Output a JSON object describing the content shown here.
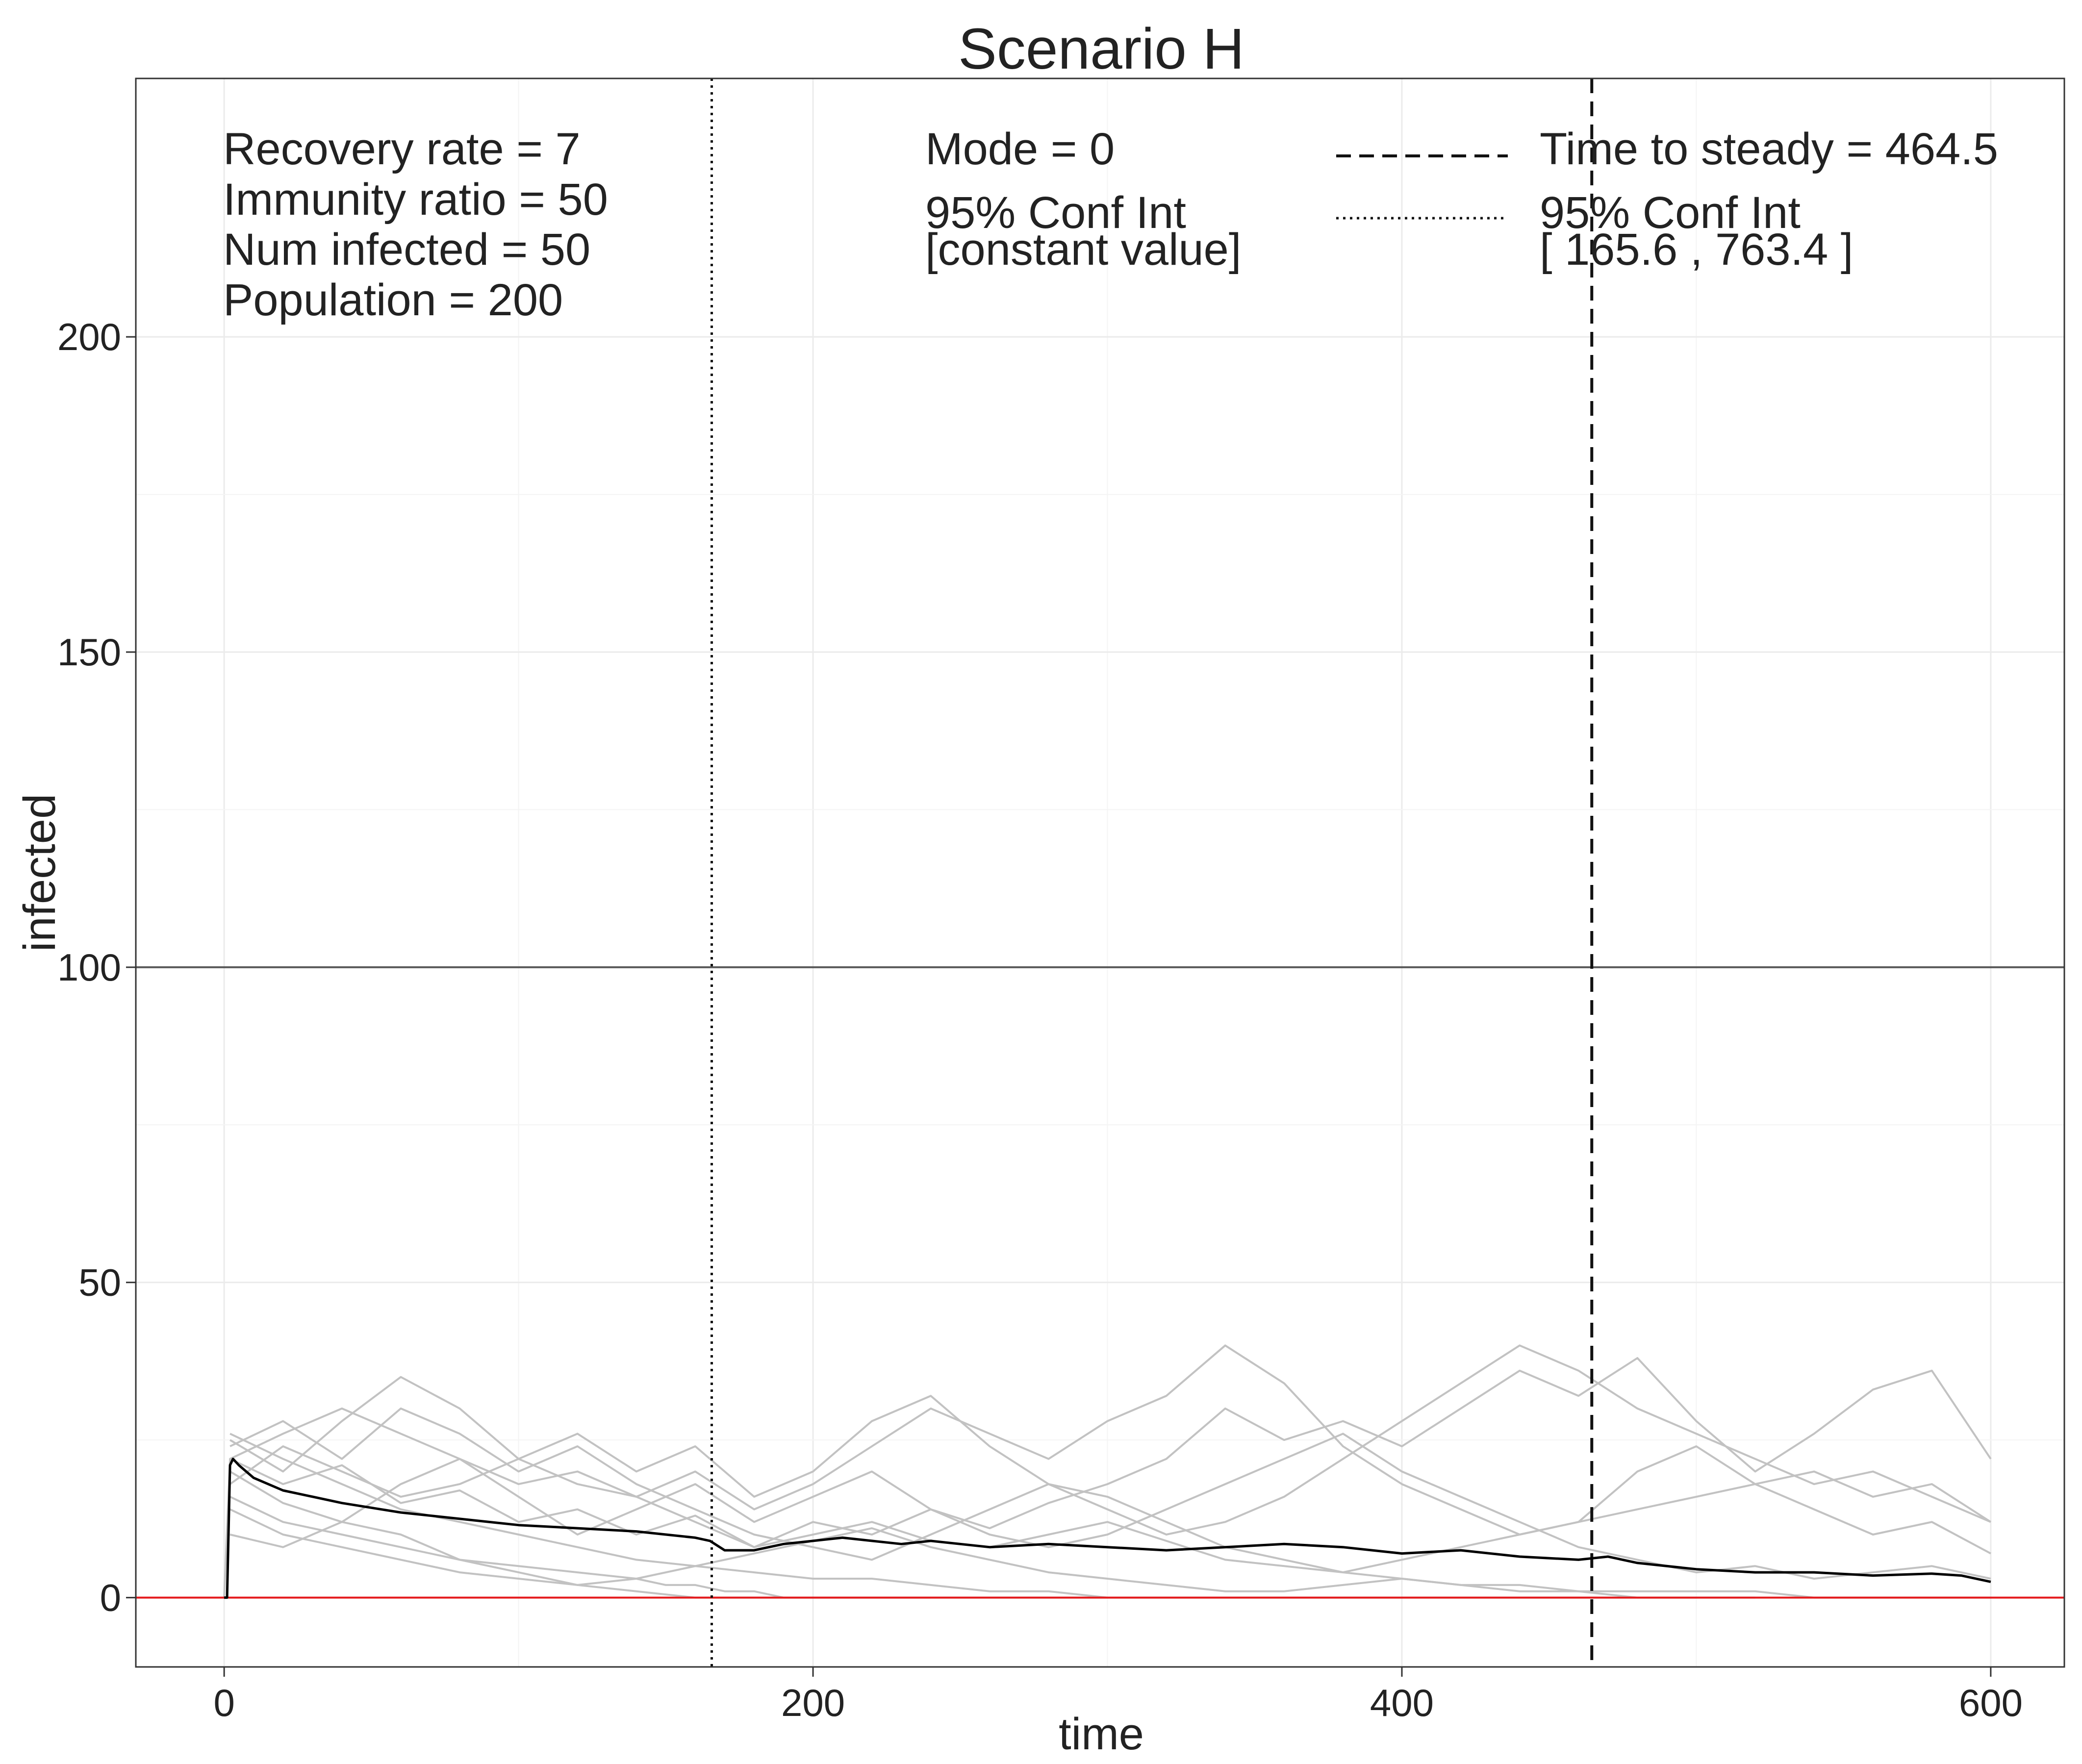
{
  "chart_data": {
    "type": "line",
    "title": "Scenario H",
    "xlabel": "time",
    "ylabel": "infected",
    "xlim": [
      -30,
      625
    ],
    "ylim": [
      -11,
      241
    ],
    "xticks": [
      0,
      200,
      400,
      600
    ],
    "yticks": [
      0,
      50,
      100,
      150,
      200
    ],
    "x_tick_labels": [
      "0",
      "200",
      "400",
      "600"
    ],
    "y_tick_labels": [
      "0",
      "50",
      "100",
      "150",
      "200"
    ],
    "grid": true,
    "reference_lines": {
      "population_half": {
        "y": 100,
        "color": "#595959"
      },
      "zero": {
        "y": 0,
        "color": "#e41a1c"
      },
      "time_to_steady": {
        "x": 464.5,
        "style": "dashed"
      },
      "ci_lower": {
        "x": 165.6,
        "style": "dotted"
      },
      "ci_upper": {
        "x": 763.4,
        "style": "dotted"
      }
    },
    "annotations": {
      "params": [
        "Recovery rate = 7",
        "Immunity ratio = 50",
        "Num infected = 50",
        "Population = 200"
      ],
      "mode_label": "Mode = 0",
      "mode_ci_label": "95% Conf Int",
      "mode_ci_value": "[constant value]",
      "steady_label": "Time to steady = 464.5",
      "steady_ci_label": "95% Conf Int",
      "steady_ci_value": "[ 165.6 , 763.4 ]"
    },
    "mean_series": {
      "color": "#000000",
      "x": [
        0,
        1,
        2,
        3,
        5,
        10,
        20,
        40,
        60,
        80,
        100,
        120,
        140,
        150,
        160,
        165,
        170,
        180,
        190,
        200,
        210,
        220,
        230,
        240,
        260,
        280,
        300,
        320,
        340,
        360,
        380,
        400,
        420,
        440,
        460,
        470,
        480,
        500,
        520,
        540,
        560,
        580,
        590,
        600
      ],
      "y": [
        0,
        0,
        21,
        22,
        21,
        19,
        17,
        15,
        13.5,
        12.5,
        11.5,
        11,
        10.5,
        10,
        9.5,
        9,
        7.5,
        7.5,
        8.5,
        9,
        9.5,
        9,
        8.5,
        9,
        8,
        8.5,
        8,
        7.5,
        8,
        8.5,
        8,
        7,
        7.5,
        6.5,
        6,
        6.5,
        5.5,
        4.5,
        4,
        4,
        3.5,
        3.8,
        3.5,
        2.5
      ]
    },
    "series": [
      {
        "x": [
          0,
          2,
          20,
          40,
          60,
          80,
          100,
          120,
          140,
          160,
          180,
          200,
          220,
          240,
          260,
          280,
          300,
          320,
          340,
          360,
          380,
          400,
          420,
          440,
          460,
          480,
          500,
          520,
          540,
          560,
          580,
          600
        ],
        "y": [
          0,
          22,
          18,
          21,
          15,
          17,
          12,
          14,
          10,
          13,
          8,
          12,
          10,
          14,
          11,
          15,
          18,
          22,
          30,
          25,
          28,
          24,
          30,
          36,
          32,
          38,
          28,
          20,
          26,
          33,
          36,
          22
        ]
      },
      {
        "x": [
          2,
          20,
          40,
          60,
          80,
          100,
          120,
          140,
          160,
          180,
          200,
          220,
          240,
          260,
          280,
          300,
          320,
          340,
          360,
          380,
          400,
          420,
          440,
          460,
          480,
          500,
          520,
          540,
          560,
          580,
          600
        ],
        "y": [
          25,
          20,
          28,
          35,
          30,
          22,
          18,
          16,
          20,
          14,
          18,
          24,
          30,
          26,
          22,
          28,
          32,
          40,
          34,
          24,
          18,
          14,
          10,
          12,
          20,
          24,
          18,
          14,
          10,
          12,
          7
        ]
      },
      {
        "x": [
          2,
          20,
          40,
          60,
          80,
          100,
          120,
          140,
          160,
          180,
          200,
          220,
          240,
          260,
          280,
          300,
          320,
          340,
          360,
          380,
          400,
          420,
          440,
          460,
          480,
          500,
          520,
          540,
          560,
          580,
          600
        ],
        "y": [
          18,
          24,
          20,
          16,
          18,
          22,
          26,
          20,
          24,
          16,
          20,
          28,
          32,
          24,
          18,
          14,
          10,
          12,
          16,
          22,
          28,
          34,
          40,
          36,
          30,
          26,
          22,
          18,
          20,
          16,
          12
        ]
      },
      {
        "x": [
          2,
          20,
          40,
          60,
          80,
          100,
          120,
          140,
          160,
          180,
          200,
          220,
          240,
          260,
          280,
          300,
          320,
          340,
          360,
          380,
          400,
          420,
          440,
          460,
          480,
          500,
          520,
          540,
          560,
          580,
          600
        ],
        "y": [
          20,
          15,
          12,
          18,
          22,
          16,
          10,
          14,
          18,
          12,
          16,
          20,
          14,
          10,
          8,
          10,
          14,
          18,
          22,
          26,
          20,
          16,
          12,
          8,
          6,
          4,
          5,
          3,
          4,
          5,
          3
        ]
      },
      {
        "x": [
          2,
          20,
          40,
          60,
          80,
          100,
          120,
          140,
          160,
          180,
          200,
          220,
          240,
          260,
          280,
          300,
          320,
          340,
          360,
          380,
          400,
          420,
          440,
          460,
          480,
          500,
          520,
          540,
          560,
          580,
          600
        ],
        "y": [
          24,
          28,
          22,
          30,
          26,
          20,
          24,
          18,
          14,
          10,
          8,
          6,
          10,
          14,
          18,
          16,
          12,
          8,
          6,
          4,
          3,
          2,
          2,
          1,
          1,
          1,
          1,
          0,
          0,
          0,
          0
        ]
      },
      {
        "x": [
          2,
          20,
          40,
          60,
          80,
          100,
          120,
          140,
          150,
          160,
          170,
          180,
          190,
          200,
          220,
          240
        ],
        "y": [
          16,
          12,
          10,
          8,
          6,
          5,
          4,
          3,
          2,
          2,
          1,
          1,
          0,
          0,
          0,
          0
        ]
      },
      {
        "x": [
          2,
          20,
          40,
          60,
          80,
          100,
          120,
          140,
          160,
          180,
          200,
          220,
          240,
          260,
          280,
          300
        ],
        "y": [
          26,
          22,
          18,
          14,
          12,
          10,
          8,
          6,
          5,
          4,
          3,
          3,
          2,
          1,
          1,
          0
        ]
      },
      {
        "x": [
          2,
          20,
          40,
          60,
          80,
          100,
          120,
          140,
          160,
          180,
          200,
          220,
          240,
          260,
          280,
          300,
          320,
          340,
          360,
          380,
          400,
          420,
          440,
          460,
          480,
          500,
          520,
          540,
          560,
          580,
          600
        ],
        "y": [
          22,
          26,
          30,
          26,
          22,
          18,
          20,
          16,
          12,
          8,
          10,
          12,
          9,
          8,
          10,
          12,
          9,
          6,
          5,
          4,
          6,
          8,
          10,
          12,
          14,
          16,
          18,
          20,
          16,
          18,
          12
        ]
      },
      {
        "x": [
          2,
          20,
          40,
          60,
          80,
          100,
          120,
          140,
          160,
          180,
          200,
          220,
          240,
          260,
          280,
          300,
          320,
          340,
          360,
          380,
          400,
          420,
          440,
          460,
          480,
          500,
          520
        ],
        "y": [
          14,
          10,
          8,
          6,
          4,
          3,
          2,
          3,
          5,
          7,
          9,
          11,
          8,
          6,
          4,
          3,
          2,
          1,
          1,
          2,
          3,
          2,
          1,
          1,
          0,
          0,
          0
        ]
      },
      {
        "x": [
          2,
          20,
          40,
          60,
          80,
          100,
          120,
          140,
          160,
          180,
          200,
          220,
          240,
          260,
          280,
          300,
          320,
          340,
          360,
          380,
          400,
          420,
          440,
          460,
          480,
          500
        ],
        "y": [
          10,
          8,
          12,
          10,
          6,
          4,
          2,
          1,
          0,
          0,
          0,
          0,
          0,
          0,
          0,
          0,
          0,
          0,
          0,
          0,
          0,
          0,
          0,
          0,
          0,
          0
        ]
      }
    ],
    "series_color": "#c2c2c2"
  }
}
